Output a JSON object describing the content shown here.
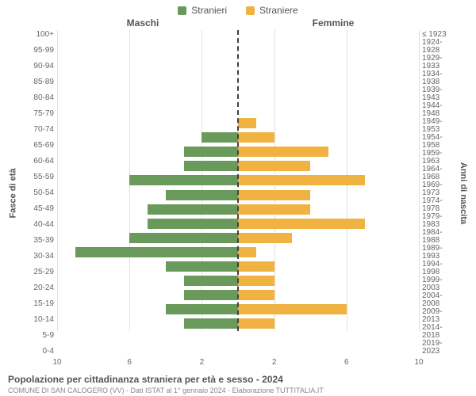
{
  "legend": {
    "male": {
      "label": "Stranieri",
      "color": "#6a9a5b"
    },
    "female": {
      "label": "Straniere",
      "color": "#f0b342"
    }
  },
  "columns": {
    "left": "Maschi",
    "right": "Femmine"
  },
  "axes": {
    "left_label": "Fasce di età",
    "right_label": "Anni di nascita",
    "x_max": 10,
    "x_ticks_left": [
      10,
      6,
      2
    ],
    "x_ticks_right": [
      2,
      6,
      10
    ],
    "grid_color": "#e0e0e0",
    "center_line_color": "#404040"
  },
  "age_groups": [
    "100+",
    "95-99",
    "90-94",
    "85-89",
    "80-84",
    "75-79",
    "70-74",
    "65-69",
    "60-64",
    "55-59",
    "50-54",
    "45-49",
    "40-44",
    "35-39",
    "30-34",
    "25-29",
    "20-24",
    "15-19",
    "10-14",
    "5-9",
    "0-4"
  ],
  "birth_years": [
    "≤ 1923",
    "1924-1928",
    "1929-1933",
    "1934-1938",
    "1939-1943",
    "1944-1948",
    "1949-1953",
    "1954-1958",
    "1959-1963",
    "1964-1968",
    "1969-1973",
    "1974-1978",
    "1979-1983",
    "1984-1988",
    "1989-1993",
    "1994-1998",
    "1999-2003",
    "2004-2008",
    "2009-2013",
    "2014-2018",
    "2019-2023"
  ],
  "male_values": [
    0,
    0,
    0,
    0,
    0,
    0,
    0,
    2,
    3,
    3,
    6,
    4,
    5,
    5,
    6,
    9,
    4,
    3,
    3,
    4,
    3
  ],
  "female_values": [
    0,
    0,
    0,
    0,
    0,
    0,
    1,
    2,
    5,
    4,
    7,
    4,
    4,
    7,
    3,
    1,
    2,
    2,
    2,
    6,
    2
  ],
  "title": "Popolazione per cittadinanza straniera per età e sesso - 2024",
  "subtitle": "COMUNE DI SAN CALOGERO (VV) - Dati ISTAT al 1° gennaio 2024 - Elaborazione TUTTITALIA.IT"
}
